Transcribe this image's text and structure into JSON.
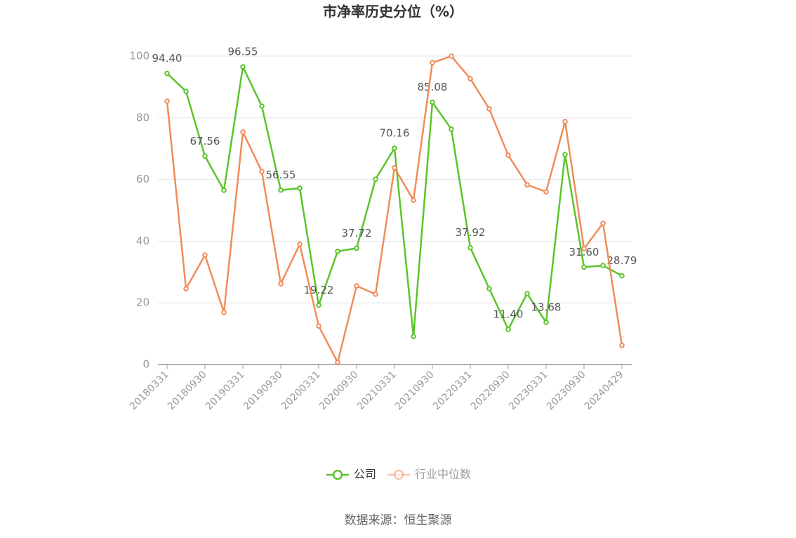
{
  "chart_data": {
    "type": "line",
    "title": "市净率历史分位（%）",
    "categories": [
      "20180331",
      null,
      "20180930",
      null,
      "20190331",
      null,
      "20190930",
      null,
      "20200331",
      null,
      "20200930",
      null,
      "20210331",
      null,
      "20210930",
      null,
      "20220331",
      null,
      "20220930",
      null,
      "20230331",
      null,
      "20230930",
      null,
      "20240429"
    ],
    "series": [
      {
        "name": "公司",
        "color": "#5cc42b",
        "values": [
          94.4,
          88.6,
          67.56,
          56.5,
          96.55,
          83.8,
          56.55,
          57.2,
          19.22,
          36.7,
          37.72,
          60.1,
          70.16,
          9.1,
          85.08,
          76.3,
          37.92,
          24.6,
          11.4,
          23.0,
          13.68,
          68.1,
          31.6,
          32.1,
          28.79
        ],
        "value_labels": [
          "94.40",
          null,
          "67.56",
          null,
          "96.55",
          null,
          "56.55",
          null,
          "19.22",
          null,
          "37.72",
          null,
          "70.16",
          null,
          "85.08",
          null,
          "37.92",
          null,
          "11.40",
          null,
          "13.68",
          null,
          "31.60",
          null,
          "28.79"
        ]
      },
      {
        "name": "行业中位数",
        "color": "#f08c5a",
        "values": [
          85.4,
          24.6,
          35.5,
          16.9,
          75.4,
          62.6,
          26.2,
          39.0,
          12.5,
          0.7,
          25.5,
          22.8,
          63.8,
          53.3,
          97.9,
          100,
          92.7,
          82.9,
          67.9,
          58.3,
          56.0,
          78.8,
          37.6,
          45.8,
          6.2
        ]
      }
    ],
    "ylim": [
      0,
      100
    ],
    "yticks": [
      0,
      20,
      40,
      60,
      80,
      100
    ],
    "grid": true,
    "source": "数据来源：恒生聚源"
  }
}
